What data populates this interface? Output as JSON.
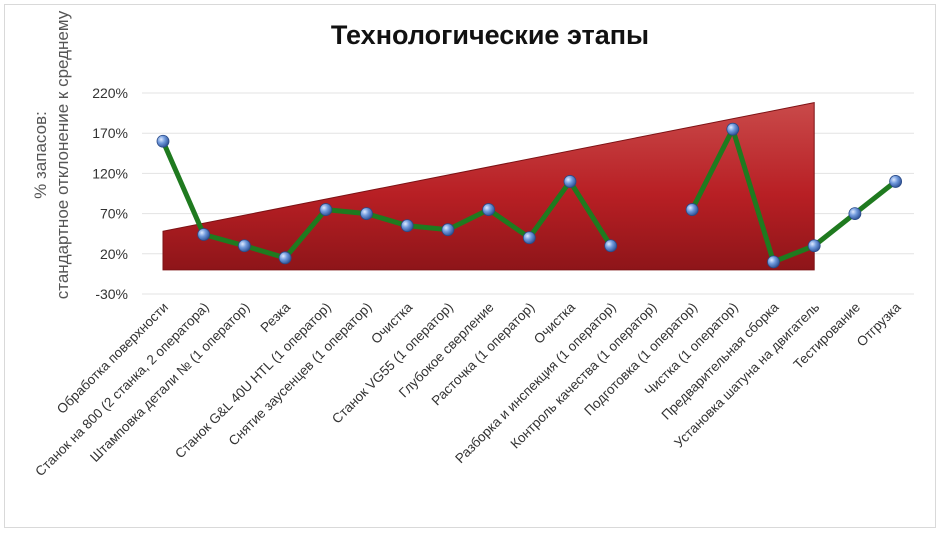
{
  "chart_data": {
    "type": "line",
    "title": "Технологические этапы",
    "ylabel_lines": [
      "% запасов:",
      "стандартное отклонение к среднему"
    ],
    "yticks": [
      "220%",
      "170%",
      "120%",
      "70%",
      "20%",
      "-30%"
    ],
    "ytick_values": [
      220,
      170,
      120,
      70,
      20,
      -30
    ],
    "ylim": [
      -30,
      220
    ],
    "grid": true,
    "categories": [
      "Обработка поверхности",
      "Станок на 800 (2 станка, 2 оператора)",
      "Штамповка детали № (1 оператор)",
      "Резка",
      "Станок G&L 40U HTL (1 оператор)",
      "Снятие заусенцев (1 оператор)",
      "Очистка",
      "Станок  VG55 (1 оператор)",
      "Глубокое сверление",
      "Расточка (1 оператор)",
      "Очистка",
      "Разборка и инспекция (1 оператор)",
      "Контроль качества (1 оператор)",
      "Подготовка (1 оператор)",
      "Чистка (1 оператор)",
      "Предварительная сборка",
      "Установка шатуна  на двигатель",
      "Тестирование",
      "Отгрузка"
    ],
    "series": [
      {
        "values": [
          160,
          44,
          30,
          15,
          75,
          70,
          55,
          50,
          75,
          40,
          110,
          30,
          null,
          75,
          175,
          10,
          30,
          70,
          110
        ],
        "color": "#1f7a1f",
        "marker_color": "#4f7fd0"
      }
    ],
    "background_shape": {
      "type": "trend-wedge",
      "color": "#c62828",
      "x_start_index": 0,
      "x_end_index": 16,
      "start_top": 48,
      "end_top": 208,
      "bottom": 0
    }
  }
}
